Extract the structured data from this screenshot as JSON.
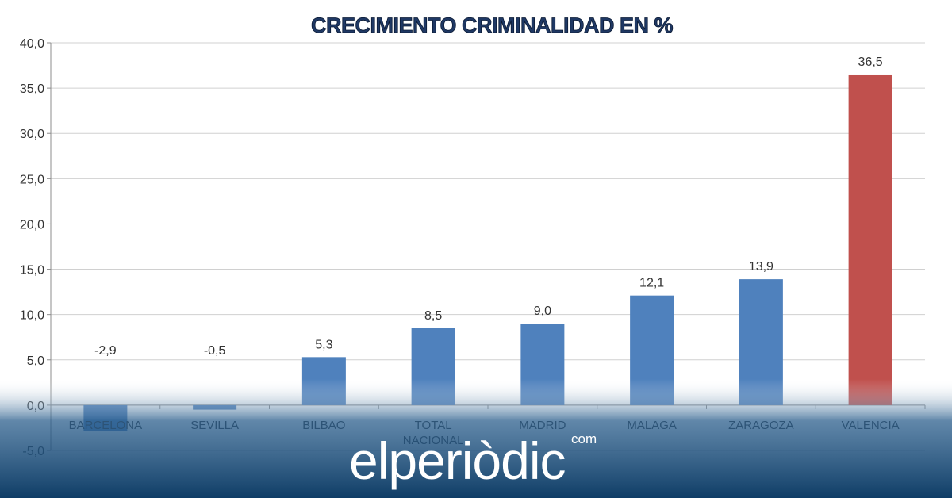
{
  "brand": {
    "name": "elperiòdic",
    "suffix": "com"
  },
  "colors": {
    "bar": "#4f81bd",
    "highlight_bar": "#c0504d",
    "footer": "#1a4d7a",
    "title": "#1f3864"
  },
  "chart_data": {
    "type": "bar",
    "title": "CRECIMIENTO CRIMINALIDAD EN %",
    "xlabel": "",
    "ylabel": "",
    "categories": [
      "BARCELONA",
      "SEVILLA",
      "BILBAO",
      "TOTAL NACIONAL",
      "MADRID",
      "MALAGA",
      "ZARAGOZA",
      "VALENCIA"
    ],
    "values": [
      -2.9,
      -0.5,
      5.3,
      8.5,
      9.0,
      12.1,
      13.9,
      36.5
    ],
    "value_labels": [
      "-2,9",
      "-0,5",
      "5,3",
      "8,5",
      "9,0",
      "12,1",
      "13,9",
      "36,5"
    ],
    "highlight_index": 7,
    "ylim": [
      -5,
      40
    ],
    "yticks": [
      -5,
      0,
      5,
      10,
      15,
      20,
      25,
      30,
      35,
      40
    ],
    "ytick_labels": [
      "-5,0",
      "0,0",
      "5,0",
      "10,0",
      "15,0",
      "20,0",
      "25,0",
      "30,0",
      "35,0",
      "40,0"
    ],
    "grid": true,
    "legend": "none"
  }
}
